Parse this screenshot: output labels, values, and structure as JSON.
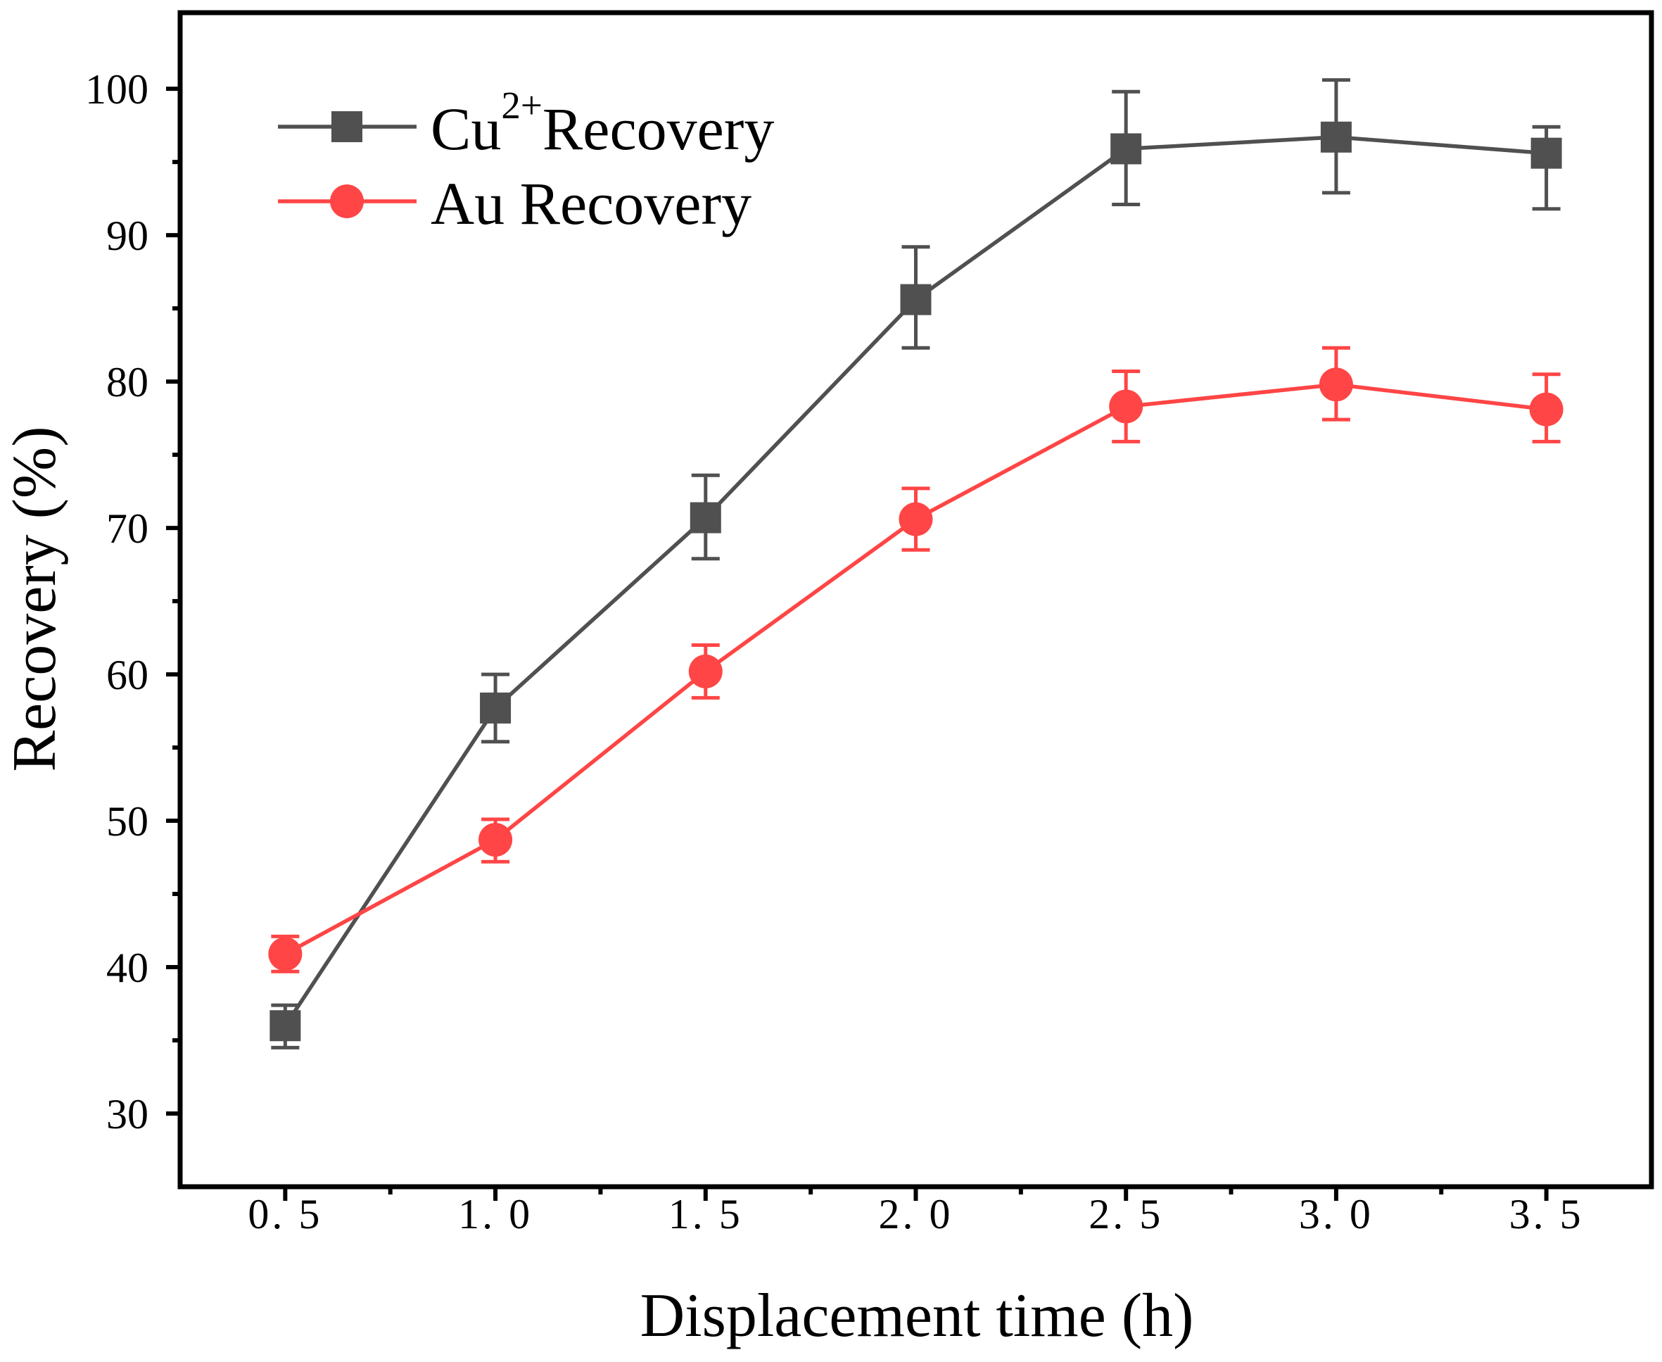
{
  "chart_data": {
    "type": "line",
    "x": [
      0.5,
      1.0,
      1.5,
      2.0,
      2.5,
      3.0,
      3.5
    ],
    "x_ticks": [
      0.5,
      1.0,
      1.5,
      2.0,
      2.5,
      3.0,
      3.5
    ],
    "x_tick_labels": [
      "0. 5",
      "1. 0",
      "1. 5",
      "2. 0",
      "2. 5",
      "3. 0",
      "3. 5"
    ],
    "y_ticks": [
      30,
      40,
      50,
      60,
      70,
      80,
      90,
      100
    ],
    "y_tick_labels": [
      "30",
      "40",
      "50",
      "60",
      "70",
      "80",
      "90",
      "100"
    ],
    "x_minor_step": 0.25,
    "y_minor_step": 5,
    "xlim": [
      0.25,
      3.75
    ],
    "ylim": [
      25,
      105.2
    ],
    "xlabel": "Displacement time (h)",
    "ylabel": "Recovery (%)",
    "grid": false,
    "legend_position": "top-left",
    "series": [
      {
        "id": "cu",
        "label": "Cu",
        "label_sup": "2+",
        "label_after": "Recovery",
        "marker": "square",
        "color": "#505050",
        "y": [
          36.0,
          57.7,
          70.7,
          85.6,
          95.9,
          96.7,
          95.6
        ],
        "yerr_plus": [
          1.4,
          2.3,
          2.9,
          3.6,
          3.9,
          3.9,
          1.8
        ],
        "yerr_minus": [
          1.5,
          2.3,
          2.8,
          3.3,
          3.8,
          3.8,
          3.8
        ]
      },
      {
        "id": "au",
        "label": "Au Recovery",
        "marker": "circle",
        "color": "#ff4545",
        "y": [
          40.9,
          48.7,
          60.2,
          70.6,
          78.3,
          79.8,
          78.1
        ],
        "yerr_plus": [
          1.2,
          1.4,
          1.8,
          2.1,
          2.4,
          2.5,
          2.4
        ],
        "yerr_minus": [
          1.2,
          1.5,
          1.8,
          2.1,
          2.4,
          2.4,
          2.2
        ]
      }
    ]
  }
}
